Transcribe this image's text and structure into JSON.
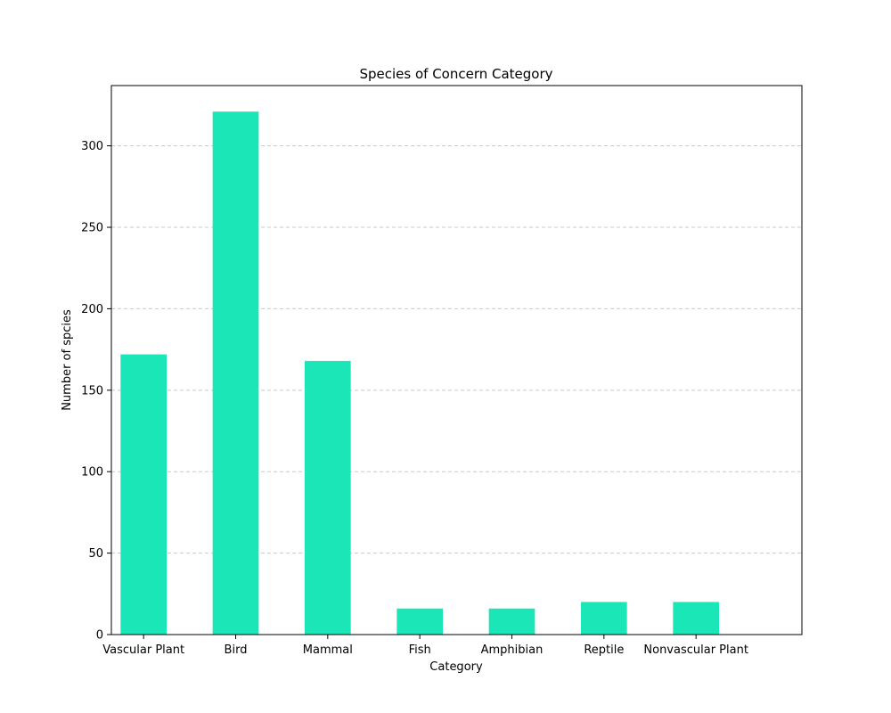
{
  "chart_data": {
    "type": "bar",
    "title": "Species of Concern Category",
    "xlabel": "Category",
    "ylabel": "Number of spcies",
    "categories": [
      "Vascular Plant",
      "Bird",
      "Mammal",
      "Fish",
      "Amphibian",
      "Reptile",
      "Nonvascular Plant"
    ],
    "values": [
      172,
      321,
      168,
      16,
      16,
      20,
      20
    ],
    "ylim": [
      0,
      337
    ],
    "yticks": [
      0,
      50,
      100,
      150,
      200,
      250,
      300
    ],
    "grid": {
      "axis": "y",
      "style": "dashed",
      "color": "#c8c8c8"
    },
    "bar_color": "#1be6b7",
    "legend": "none"
  }
}
